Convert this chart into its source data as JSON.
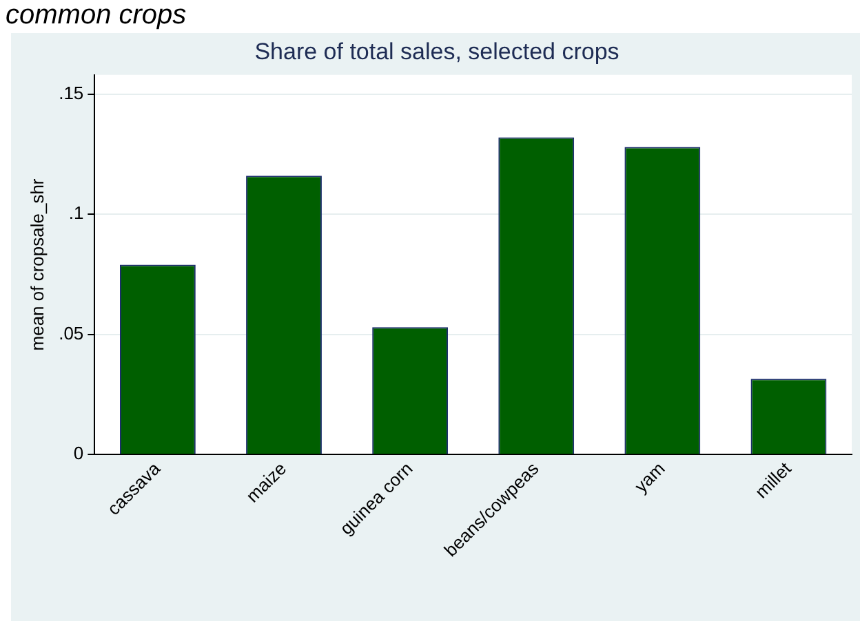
{
  "chart_data": {
    "type": "bar",
    "title": "Share of total sales, selected crops",
    "ylabel": "mean of cropsale_shr",
    "annotations": [
      "common crops"
    ],
    "categories": [
      "cassava",
      "maize",
      "guinea corn",
      "beans/cowpeas",
      "yam",
      "millet"
    ],
    "values": [
      0.079,
      0.116,
      0.053,
      0.132,
      0.128,
      0.0315
    ],
    "color": "#005f00",
    "ylim": [
      0,
      0.158
    ],
    "yticks": [
      {
        "value": 0,
        "label": "0"
      },
      {
        "value": 0.05,
        "label": ".05"
      },
      {
        "value": 0.1,
        "label": ".1"
      },
      {
        "value": 0.15,
        "label": ".15"
      }
    ],
    "grid": "y",
    "legend": false
  }
}
